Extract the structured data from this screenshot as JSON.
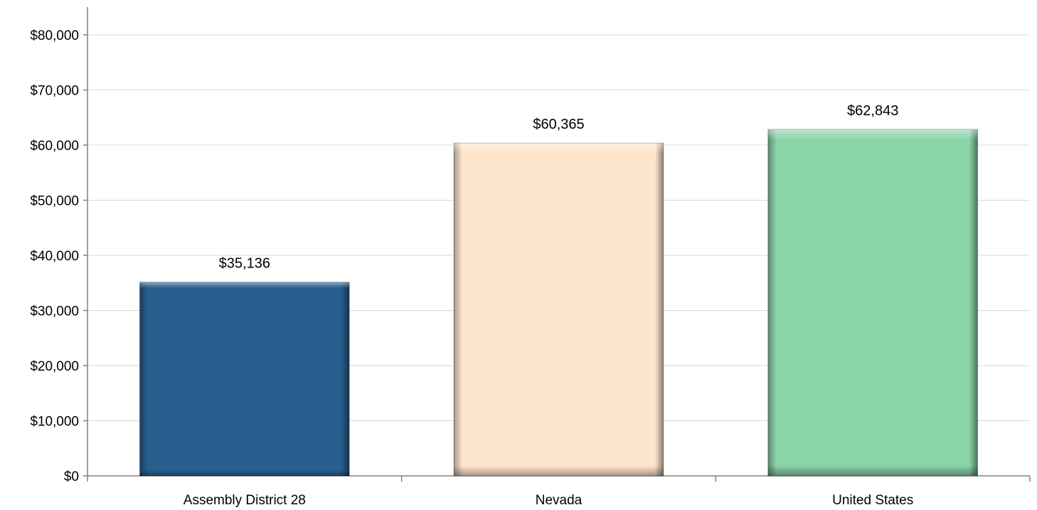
{
  "chart_data": {
    "type": "bar",
    "title": "",
    "xlabel": "",
    "ylabel": "",
    "categories": [
      "Assembly District 28",
      "Nevada",
      "United States"
    ],
    "values": [
      35136,
      60365,
      62843
    ],
    "value_labels": [
      "$35,136",
      "$60,365",
      "$62,843"
    ],
    "bar_colors": [
      "#27608f",
      "#fde5cc",
      "#8ad4a8"
    ],
    "ylim": [
      0,
      80000
    ],
    "y_ticks": [
      0,
      10000,
      20000,
      30000,
      40000,
      50000,
      60000,
      70000,
      80000
    ],
    "y_tick_labels": [
      "$0",
      "$10,000",
      "$20,000",
      "$30,000",
      "$40,000",
      "$50,000",
      "$60,000",
      "$70,000",
      "$80,000"
    ],
    "grid": true,
    "legend": "none"
  }
}
